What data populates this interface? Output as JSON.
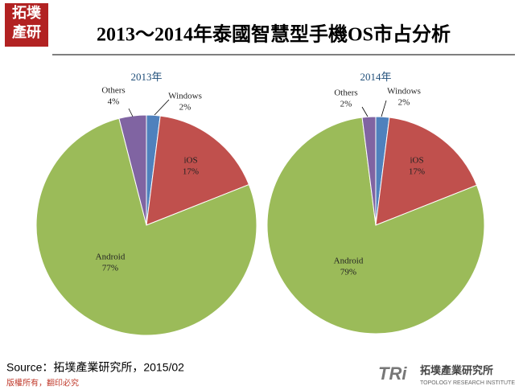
{
  "logo": {
    "line1": "拓墣",
    "line2": "產研"
  },
  "title": "2013～2014年泰國智慧型手機OS市占分析",
  "source": "Source：拓墣產業研究所，2015/02",
  "copyright": "版權所有，翻印必究",
  "brand": {
    "mark": "TRi",
    "name": "拓墣產業研究所",
    "english": "TOPOLOGY RESEARCH INSTITUTE"
  },
  "chart_data": [
    {
      "type": "pie",
      "title": "2013年",
      "categories": [
        "Windows",
        "iOS",
        "Android",
        "Others"
      ],
      "values": [
        2,
        17,
        77,
        4
      ],
      "value_labels": [
        "2%",
        "17%",
        "77%",
        "4%"
      ],
      "colors": [
        "#4f81bd",
        "#c0504d",
        "#9bbb59",
        "#8064a2"
      ]
    },
    {
      "type": "pie",
      "title": "2014年",
      "categories": [
        "Windows",
        "iOS",
        "Android",
        "Others"
      ],
      "values": [
        2,
        17,
        79,
        2
      ],
      "value_labels": [
        "2%",
        "17%",
        "79%",
        "2%"
      ],
      "colors": [
        "#4f81bd",
        "#c0504d",
        "#9bbb59",
        "#8064a2"
      ]
    }
  ]
}
